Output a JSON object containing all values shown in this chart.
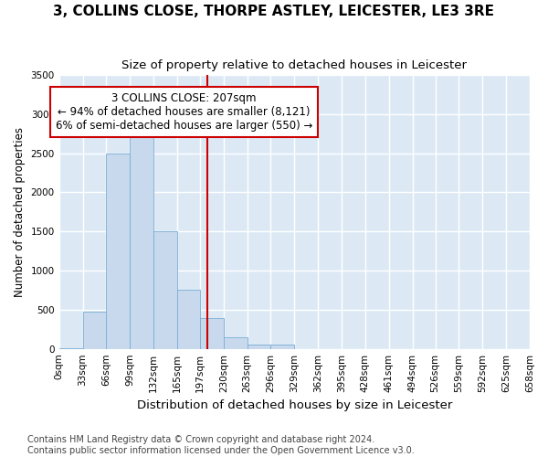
{
  "title": "3, COLLINS CLOSE, THORPE ASTLEY, LEICESTER, LE3 3RE",
  "subtitle": "Size of property relative to detached houses in Leicester",
  "xlabel": "Distribution of detached houses by size in Leicester",
  "ylabel": "Number of detached properties",
  "footer_line1": "Contains HM Land Registry data © Crown copyright and database right 2024.",
  "footer_line2": "Contains public sector information licensed under the Open Government Licence v3.0.",
  "bin_edges": [
    0,
    33,
    66,
    99,
    132,
    165,
    197,
    230,
    263,
    296,
    329,
    362,
    395,
    428,
    461,
    494,
    526,
    559,
    592,
    625,
    658
  ],
  "bin_labels": [
    "0sqm",
    "33sqm",
    "66sqm",
    "99sqm",
    "132sqm",
    "165sqm",
    "197sqm",
    "230sqm",
    "263sqm",
    "296sqm",
    "329sqm",
    "362sqm",
    "395sqm",
    "428sqm",
    "461sqm",
    "494sqm",
    "526sqm",
    "559sqm",
    "592sqm",
    "625sqm",
    "658sqm"
  ],
  "bar_heights": [
    10,
    480,
    2500,
    2800,
    1500,
    750,
    390,
    150,
    50,
    50,
    0,
    0,
    0,
    0,
    0,
    0,
    0,
    0,
    0,
    0
  ],
  "bar_color": "#c8d9ee",
  "bar_edge_color": "#7aadd4",
  "property_value": 207,
  "vline_color": "#cc0000",
  "annotation_line1": "3 COLLINS CLOSE: 207sqm",
  "annotation_line2": "← 94% of detached houses are smaller (8,121)",
  "annotation_line3": "6% of semi-detached houses are larger (550) →",
  "annotation_box_facecolor": "#ffffff",
  "annotation_box_edgecolor": "#cc0000",
  "ylim_max": 3500,
  "fig_facecolor": "#ffffff",
  "plot_facecolor": "#dce9f5",
  "grid_color": "#ffffff",
  "title_fontsize": 11,
  "subtitle_fontsize": 9.5,
  "ylabel_fontsize": 8.5,
  "xlabel_fontsize": 9.5,
  "tick_fontsize": 7.5,
  "annotation_fontsize": 8.5,
  "footer_fontsize": 7
}
